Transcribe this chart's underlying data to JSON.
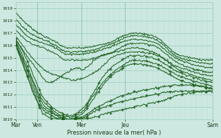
{
  "xlabel": "Pression niveau de la mer( hPa )",
  "bg_color": "#cce8e0",
  "plot_bg_color": "#cce8e0",
  "grid_color_major": "#99ccbb",
  "grid_color_minor": "#b8ddd5",
  "line_color": "#1a5c1a",
  "xlim": [
    0,
    108
  ],
  "ylim": [
    1010.0,
    1019.5
  ],
  "yticks": [
    1010,
    1011,
    1012,
    1013,
    1014,
    1015,
    1016,
    1017,
    1018,
    1019
  ],
  "xtick_positions": [
    0,
    12,
    36,
    60,
    108
  ],
  "xtick_labels": [
    "Mar",
    "Ven",
    "Mer",
    "Jeu",
    "Sam"
  ],
  "day_vlines": [
    12,
    36,
    60,
    108
  ]
}
